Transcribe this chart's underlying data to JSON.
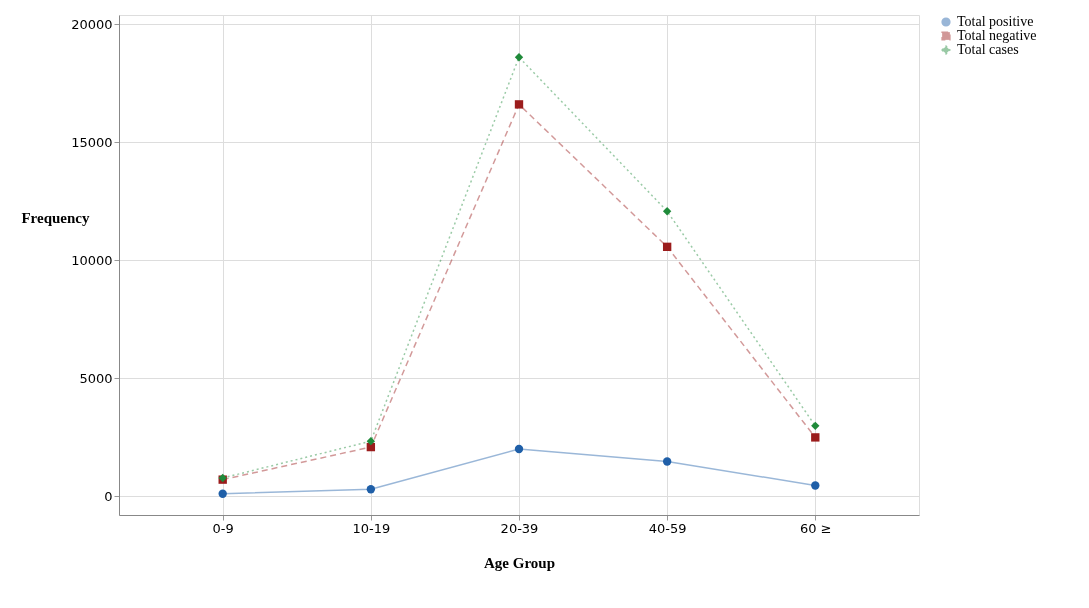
{
  "chart_data": {
    "type": "line",
    "xlabel": "Age Group",
    "ylabel": "Frequency",
    "categories": [
      "0-9",
      "10-19",
      "20-39",
      "40-59",
      "60 ≥"
    ],
    "series": [
      {
        "name": "Total positive",
        "color": "#1f5fa8",
        "marker": "circle",
        "line_style": "solid",
        "values": [
          100,
          290,
          2000,
          1470,
          450
        ]
      },
      {
        "name": "Total negative",
        "color": "#9b1c1c",
        "marker": "square",
        "line_style": "dashed",
        "values": [
          700,
          2080,
          16610,
          10570,
          2490
        ]
      },
      {
        "name": "Total cases",
        "color": "#1f8a3a",
        "marker": "diamond",
        "line_style": "dotted",
        "values": [
          770,
          2330,
          18610,
          12080,
          2980
        ]
      }
    ],
    "ylim": [
      -800,
      20400
    ],
    "yticks": [
      0,
      5000,
      10000,
      15000,
      20000
    ],
    "grid": true,
    "legend": "top right"
  }
}
